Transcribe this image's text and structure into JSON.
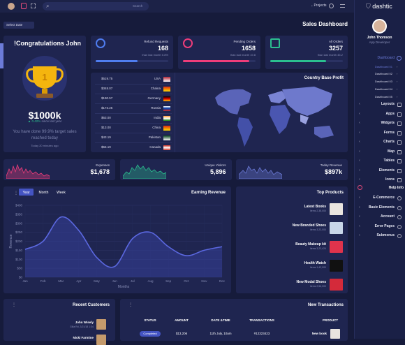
{
  "topbar": {
    "search": "Search",
    "projects": "Projects"
  },
  "sidebar": {
    "brand": "dashtic",
    "user": "John Thomson",
    "role": "App Developer",
    "menu_title": "Dashboard",
    "submenu": [
      "Dashboard 01",
      "Dashboard 02",
      "Dashboard 03",
      "Dashboard 04",
      "Dashboard 05"
    ],
    "items": [
      "Layouts",
      "Apps",
      "Widgets",
      "Forms",
      "Charts",
      "Map",
      "Tables",
      "Elements",
      "Icons"
    ],
    "help": "Help Info",
    "help_items": [
      "E-Commerce",
      "Basic Elements",
      "Account",
      "Error Pages",
      "Submenus"
    ]
  },
  "header": {
    "date_button": "Select Date",
    "title": "Sales Dashboard"
  },
  "congrats": {
    "title": "!Congratulations John",
    "amount": "$1000k",
    "change": "0.42%",
    "change_note": "since last year",
    "message": "You have done 99.9% target sales reached today",
    "time": "Today 20 minutes ago"
  },
  "stats": [
    {
      "label": "Refund Requests",
      "value": 168,
      "note": "than last month 0.8%"
    },
    {
      "label": "Pending Orders",
      "value": 1658,
      "note": "than last month 19.8"
    },
    {
      "label": "All Orders",
      "value": 3257,
      "note": "than last month 45.2"
    }
  ],
  "countries": {
    "title": "Country Base Profit",
    "rows": [
      {
        "amount": "$519.75",
        "country": "USA"
      },
      {
        "amount": "$348.07",
        "country": "Chaina"
      },
      {
        "amount": "$190.57",
        "country": "Germany"
      },
      {
        "amount": "$173.25",
        "country": "Russia"
      },
      {
        "amount": "$63.00",
        "country": "India"
      },
      {
        "amount": "$13.00",
        "country": "China"
      },
      {
        "amount": "$43.19",
        "country": "Pakistan"
      },
      {
        "amount": "$56.19",
        "country": "Canada"
      }
    ]
  },
  "minis": [
    {
      "label": "Expenses",
      "value": "$1,678"
    },
    {
      "label": "Unique Visitors",
      "value": "5,896"
    },
    {
      "label": "Today Revenue",
      "value": "$897k"
    }
  ],
  "earnings": {
    "title": "Earning Revenue",
    "tabs": [
      "Year",
      "Month",
      "Week"
    ],
    "y_label": "Revenue",
    "x_label": "Months",
    "months": [
      "Jan",
      "Feb",
      "Mar",
      "Apr",
      "May",
      "Jun",
      "Jul",
      "Aug",
      "Sep",
      "Oct",
      "Nov",
      "Dec"
    ],
    "values": [
      155,
      200,
      335,
      260,
      110,
      60,
      215,
      250,
      170,
      120,
      150,
      170
    ],
    "ylim": [
      0,
      400
    ],
    "yticks": [
      {
        "value": 0,
        "label": "$0"
      },
      {
        "value": 50,
        "label": "$50"
      },
      {
        "value": 100,
        "label": "$100"
      },
      {
        "value": 150,
        "label": "$150"
      },
      {
        "value": 200,
        "label": "$200"
      },
      {
        "value": 250,
        "label": "$250"
      },
      {
        "value": 300,
        "label": "$300"
      },
      {
        "value": 350,
        "label": "$350"
      },
      {
        "value": 400,
        "label": "$400"
      }
    ]
  },
  "products": {
    "title": "Top Products",
    "items": [
      {
        "name": "Latest Books",
        "items": "Items 2,38,000"
      },
      {
        "name": "New Branded Shoes",
        "items": "Items 3,23,000"
      },
      {
        "name": "Beauty Makeup kit",
        "items": "Items 3,23,424"
      },
      {
        "name": "Health Watch",
        "items": "Items 1,42,000"
      },
      {
        "name": "New Modal Shoes",
        "items": "Items 2,56,000"
      }
    ]
  },
  "customers": {
    "title": "Recent Customers",
    "rows": [
      {
        "name": "John Wisely",
        "detail": "Gilla Rd, 3/21/18 1:34"
      },
      {
        "name": "Nicki Farmine"
      }
    ]
  },
  "transactions": {
    "title": "New Transactions",
    "headers": [
      "STATUS",
      "AMOUNT",
      "DATE &TIME",
      "TRANSACTIONS",
      "PRODUCT"
    ],
    "rows": [
      [
        "Completed",
        "$13,206",
        "11th July, 10am",
        "#12323423",
        "New book"
      ]
    ]
  }
}
